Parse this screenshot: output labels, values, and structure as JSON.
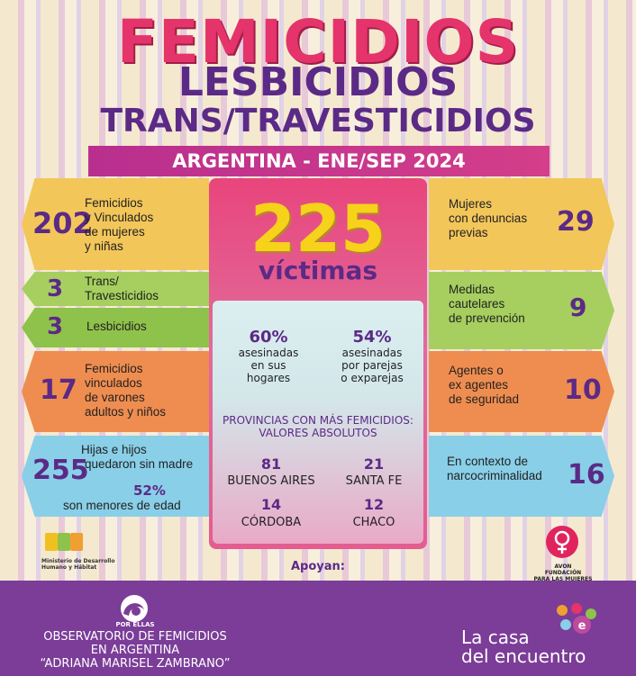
{
  "title": {
    "line1": "FEMICIDIOS",
    "line2": "LESBICIDIOS",
    "line3": "TRANS/TRAVESTICIDIOS",
    "banner": "ARGENTINA - ENE/SEP 2024"
  },
  "left": [
    {
      "number": "202",
      "text": [
        "Femicidios",
        "y Vinculados",
        "de mujeres",
        "y niñas"
      ],
      "color": "#f3c65a"
    },
    {
      "number": "3",
      "text": [
        "Trans/",
        "Travesticidios"
      ],
      "color": "#a6cf5f"
    },
    {
      "number": "3",
      "text": [
        "Lesbicidios"
      ],
      "color": "#8fc24a"
    },
    {
      "number": "17",
      "text": [
        "Femicidios",
        "vinculados",
        "de varones",
        "adultos y niños"
      ],
      "color": "#ef8d50"
    },
    {
      "number": "255",
      "text": [
        "Hijas e hijos",
        "quedaron sin madre"
      ],
      "sub_number": "52%",
      "sub_text": "son menores de edad",
      "color": "#89cfe8"
    }
  ],
  "right": [
    {
      "number": "29",
      "text": [
        "Mujeres",
        "con denuncias",
        "previas"
      ],
      "color": "#f3c65a"
    },
    {
      "number": "9",
      "text": [
        "Medidas",
        "cautelares",
        "de prevención"
      ],
      "color": "#a6cf5f"
    },
    {
      "number": "10",
      "text": [
        "Agentes o",
        "ex agentes",
        "de seguridad"
      ],
      "color": "#ef8d50"
    },
    {
      "number": "16",
      "text": [
        "En contexto de",
        "narcocriminalidad"
      ],
      "color": "#89cfe8"
    }
  ],
  "center": {
    "total": "225",
    "total_label": "víctimas",
    "stat1": {
      "value": "60%",
      "text": [
        "asesinadas",
        "en sus",
        "hogares"
      ]
    },
    "stat2": {
      "value": "54%",
      "text": [
        "asesinadas",
        "por parejas",
        "o exparejas"
      ]
    },
    "provinces_title": [
      "PROVINCIAS CON MÁS FEMICIDIOS:",
      "VALORES ABSOLUTOS"
    ],
    "provinces": [
      {
        "value": "81",
        "name": "BUENOS AIRES"
      },
      {
        "value": "21",
        "name": "SANTA FE"
      },
      {
        "value": "14",
        "name": "CÓRDOBA"
      },
      {
        "value": "12",
        "name": "CHACO"
      }
    ]
  },
  "supporters": {
    "label": "Apoyan:",
    "left_logo": [
      "Ministerio de Desarrollo",
      "Humano y Hábitat"
    ],
    "right_logo": [
      "AVON",
      "FUNDACIÓN",
      "PARA LAS MUJERES"
    ]
  },
  "footer": {
    "org_badge": "POR ELLAS",
    "org": [
      "OBSERVATORIO DE FEMICIDIOS",
      "EN ARGENTINA",
      "“ADRIANA MARISEL ZAMBRANO”"
    ],
    "brand": [
      "La casa",
      "del encuentro"
    ]
  },
  "colors": {
    "primary": "#5b2a86",
    "accent": "#e5336b",
    "footer": "#7b3d98"
  }
}
